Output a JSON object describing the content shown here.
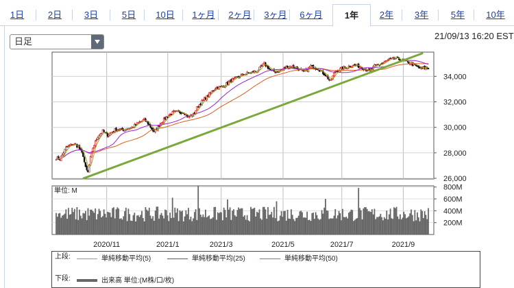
{
  "tabs": [
    {
      "label": "1日",
      "active": false
    },
    {
      "label": "2日",
      "active": false
    },
    {
      "label": "3日",
      "active": false
    },
    {
      "label": "5日",
      "active": false
    },
    {
      "label": "10日",
      "active": false
    },
    {
      "label": "1ヶ月",
      "active": false
    },
    {
      "label": "2ヶ月",
      "active": false
    },
    {
      "label": "3ヶ月",
      "active": false
    },
    {
      "label": "6ヶ月",
      "active": false
    },
    {
      "label": "1年",
      "active": true
    },
    {
      "label": "2年",
      "active": false
    },
    {
      "label": "3年",
      "active": false
    },
    {
      "label": "5年",
      "active": false
    },
    {
      "label": "10年",
      "active": false
    }
  ],
  "period_select": {
    "value": "日足"
  },
  "timestamp": "21/09/13 16:20 EST",
  "colors": {
    "up": "#cc0000",
    "down": "#111111",
    "ma5": "#9aaa2a",
    "ma25": "#9922cc",
    "ma50": "#e05a1a",
    "trendline": "#7aa83a",
    "volume": "#666666",
    "tab_link": "#1a3fa6"
  },
  "chart_data": [
    {
      "type": "candlestick",
      "title": "",
      "yticks": [
        "34,000",
        "32,000",
        "30,000",
        "28,000",
        "26,000"
      ],
      "ytick_values": [
        34000,
        32000,
        30000,
        28000,
        26000
      ],
      "ylim": [
        25950,
        35900
      ],
      "xticks": [
        "2020/11",
        "2021/1",
        "2021/3",
        "2021/5",
        "2021/7",
        "2021/9"
      ],
      "grid": true,
      "anchors": [
        [
          0,
          27600
        ],
        [
          3,
          27500
        ],
        [
          8,
          28400
        ],
        [
          14,
          28700
        ],
        [
          18,
          28500
        ],
        [
          22,
          27800
        ],
        [
          24,
          26800
        ],
        [
          26,
          26450
        ],
        [
          28,
          27600
        ],
        [
          30,
          28400
        ],
        [
          34,
          29300
        ],
        [
          38,
          29700
        ],
        [
          42,
          29400
        ],
        [
          48,
          29800
        ],
        [
          55,
          29800
        ],
        [
          62,
          30000
        ],
        [
          68,
          30400
        ],
        [
          72,
          30600
        ],
        [
          76,
          30200
        ],
        [
          80,
          29600
        ],
        [
          84,
          30200
        ],
        [
          90,
          30800
        ],
        [
          96,
          31200
        ],
        [
          104,
          31200
        ],
        [
          108,
          30800
        ],
        [
          112,
          31000
        ],
        [
          116,
          31700
        ],
        [
          124,
          32500
        ],
        [
          130,
          33100
        ],
        [
          136,
          33200
        ],
        [
          142,
          33600
        ],
        [
          148,
          33900
        ],
        [
          154,
          34200
        ],
        [
          160,
          34300
        ],
        [
          164,
          34400
        ],
        [
          170,
          35000
        ],
        [
          172,
          34800
        ],
        [
          176,
          34400
        ],
        [
          182,
          34400
        ],
        [
          190,
          34800
        ],
        [
          196,
          34700
        ],
        [
          202,
          34300
        ],
        [
          208,
          34800
        ],
        [
          214,
          34600
        ],
        [
          220,
          34100
        ],
        [
          224,
          33600
        ],
        [
          228,
          34400
        ],
        [
          236,
          34700
        ],
        [
          244,
          34900
        ],
        [
          250,
          34700
        ],
        [
          256,
          34400
        ],
        [
          260,
          34800
        ],
        [
          266,
          35000
        ],
        [
          272,
          35300
        ],
        [
          278,
          35400
        ],
        [
          284,
          35200
        ],
        [
          290,
          35000
        ],
        [
          294,
          34800
        ],
        [
          298,
          34600
        ],
        [
          302,
          34700
        ],
        [
          304,
          34600
        ]
      ],
      "trendline": [
        [
          "2020/10/30",
          26000
        ],
        [
          "2021/9/13",
          35800
        ]
      ],
      "series": [
        {
          "name": "単純移動平均(5)"
        },
        {
          "name": "単純移動平均(25)"
        },
        {
          "name": "単純移動平均(50)"
        }
      ]
    },
    {
      "type": "bar",
      "title": "",
      "unit_label": "単位: M",
      "yticks": [
        "800M",
        "600M",
        "400M",
        "200M"
      ],
      "ytick_values": [
        800,
        600,
        400,
        200
      ],
      "ylim": [
        0,
        820
      ],
      "spikes": [
        [
          116,
          830
        ],
        [
          247,
          785
        ],
        [
          95,
          620
        ],
        [
          140,
          590
        ],
        [
          180,
          560
        ],
        [
          220,
          600
        ]
      ],
      "series": [
        {
          "name": "出来高 単位:(M株/口/枚)"
        }
      ]
    }
  ],
  "legend": {
    "upper_label": "上段:",
    "lower_label": "下段:",
    "upper_items": [
      "単純移動平均(5)",
      "単純移動平均(25)",
      "単純移動平均(50)"
    ],
    "lower_item": "出来高 単位:(M株/口/枚)"
  }
}
